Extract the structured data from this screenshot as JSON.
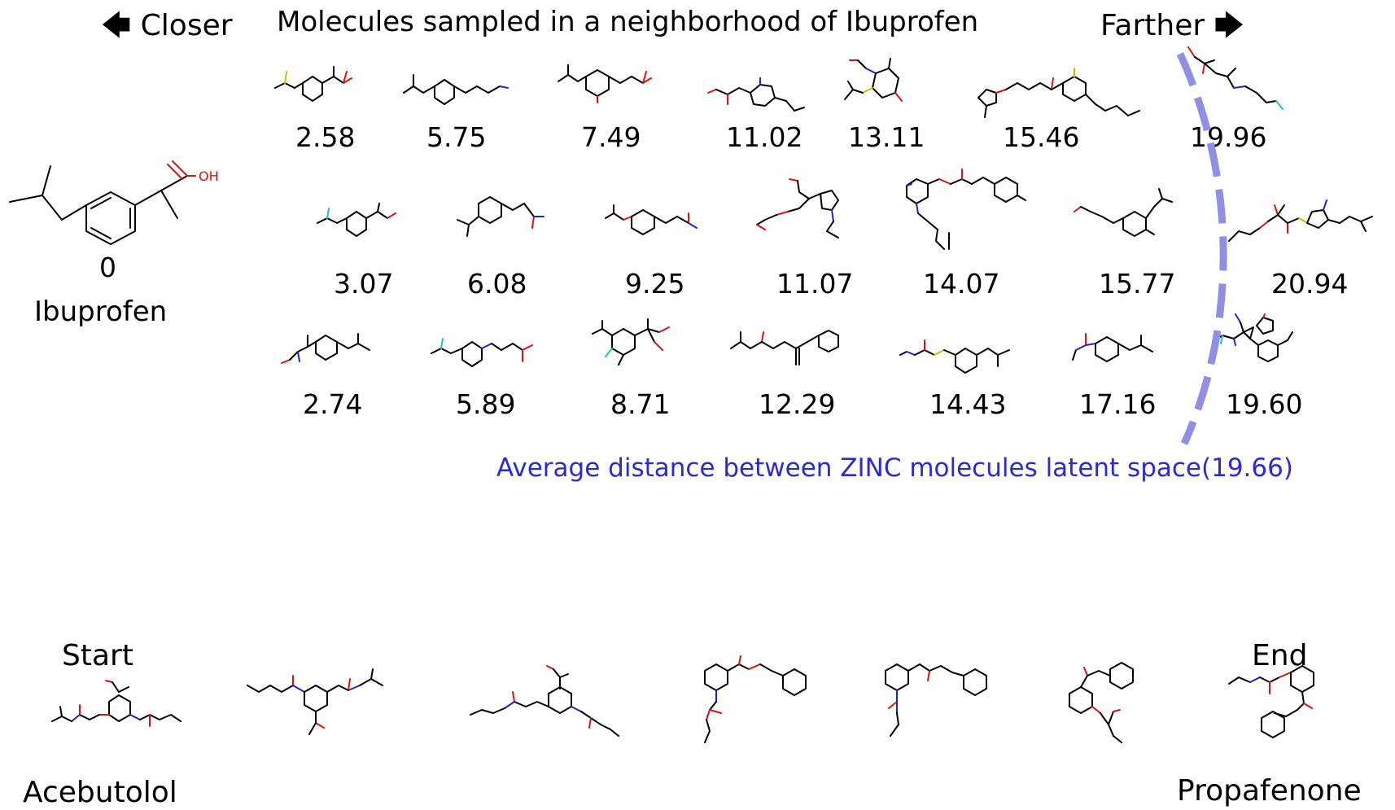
{
  "header": {
    "title": "Molecules sampled in a neighborhood of Ibuprofen",
    "closer": "Closer",
    "farther": "Farther"
  },
  "reference": {
    "distance": "0",
    "name": "Ibuprofen",
    "acid_label": "OH"
  },
  "grid": {
    "row1": [
      "2.58",
      "5.75",
      "7.49",
      "11.02",
      "13.11",
      "15.46",
      "19.96"
    ],
    "row2": [
      "3.07",
      "6.08",
      "9.25",
      "11.07",
      "14.07",
      "15.77",
      "20.94"
    ],
    "row3": [
      "2.74",
      "5.89",
      "8.71",
      "12.29",
      "14.43",
      "17.16",
      "19.60"
    ]
  },
  "average_label": "Average distance between ZINC molecules latent space(19.66)",
  "interpolation": {
    "start_label": "Start",
    "end_label": "End",
    "start_name": "Acebutolol",
    "end_name": "Propafenone"
  },
  "colors": {
    "boundary": "#8f8fe6",
    "average_text": "#2b2bd6",
    "oxygen": "#e01010",
    "nitrogen": "#2020d0",
    "sulfur": "#c8c000",
    "fluorine": "#20c0c8"
  },
  "icons": {
    "left": "arrow-left-icon",
    "right": "arrow-right-icon"
  }
}
